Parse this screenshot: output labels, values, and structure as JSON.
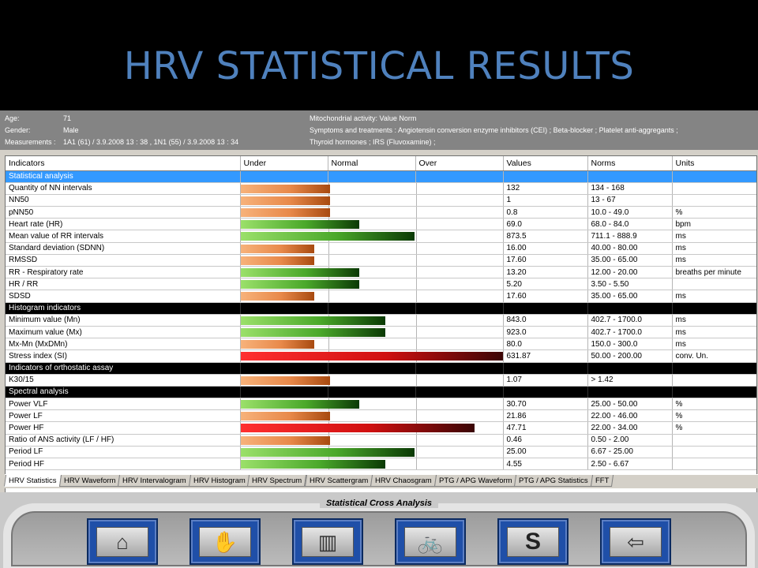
{
  "slide_title": "HRV STATISTICAL RESULTS",
  "patient": {
    "age_label": "Age:",
    "age": "71",
    "gender_label": "Gender:",
    "gender": "Male",
    "measurements_label": "Measurements :",
    "measurements": "1A1  (61)  / 3.9.2008  13 : 38 , 1N1  (55)  / 3.9.2008  13 : 34",
    "mito": "Mitochondrial activity: Value Norm",
    "symptoms": "Symptoms and treatments : Angiotensin conversion enzyme inhibitors (CEI) ; Beta-blocker ; Platelet anti-aggregants ;",
    "symptoms2": "Thyroid hormones ; IRS (Fluvoxamine) ;"
  },
  "columns": [
    "Indicators",
    "Under",
    "Normal",
    "Over",
    "Values",
    "Norms",
    "Units"
  ],
  "rows": [
    {
      "type": "section",
      "style": "blue",
      "label": "Statistical analysis"
    },
    {
      "label": "Quantity of NN intervals",
      "value": "132",
      "norm": "134 - 168",
      "unit": "",
      "bar": 0.34,
      "color": "orange"
    },
    {
      "label": "NN50",
      "value": "1",
      "norm": "13 - 67",
      "unit": "",
      "bar": 0.34,
      "color": "orange"
    },
    {
      "label": "pNN50",
      "value": "0.8",
      "norm": "10.0 - 49.0",
      "unit": "%",
      "bar": 0.34,
      "color": "orange"
    },
    {
      "label": "Heart rate (HR)",
      "value": "69.0",
      "norm": "68.0 - 84.0",
      "unit": "bpm",
      "bar": 0.45,
      "color": "green"
    },
    {
      "label": "Mean value of RR intervals",
      "value": "873.5",
      "norm": "711.1 - 888.9",
      "unit": "ms",
      "bar": 0.66,
      "color": "green"
    },
    {
      "label": "Standard deviation (SDNN)",
      "value": "16.00",
      "norm": "40.00 - 80.00",
      "unit": "ms",
      "bar": 0.28,
      "color": "orange"
    },
    {
      "label": "RMSSD",
      "value": "17.60",
      "norm": "35.00 - 65.00",
      "unit": "ms",
      "bar": 0.28,
      "color": "orange"
    },
    {
      "label": "RR - Respiratory rate",
      "value": "13.20",
      "norm": "12.00 - 20.00",
      "unit": "breaths per minute",
      "bar": 0.45,
      "color": "green"
    },
    {
      "label": "HR / RR",
      "value": "5.20",
      "norm": "3.50 - 5.50",
      "unit": "",
      "bar": 0.45,
      "color": "green"
    },
    {
      "label": "SDSD",
      "value": "17.60",
      "norm": "35.00 - 65.00",
      "unit": "ms",
      "bar": 0.28,
      "color": "orange"
    },
    {
      "type": "section",
      "style": "black",
      "label": "Histogram indicators"
    },
    {
      "label": "Minimum value (Mn)",
      "value": "843.0",
      "norm": "402.7 - 1700.0",
      "unit": "ms",
      "bar": 0.55,
      "color": "green"
    },
    {
      "label": "Maximum value (Mx)",
      "value": "923.0",
      "norm": "402.7 - 1700.0",
      "unit": "ms",
      "bar": 0.55,
      "color": "green"
    },
    {
      "label": "Mx-Mn (MxDMn)",
      "value": "80.0",
      "norm": "150.0 - 300.0",
      "unit": "ms",
      "bar": 0.28,
      "color": "orange"
    },
    {
      "label": "Stress index (SI)",
      "value": "631.87",
      "norm": "50.00 - 200.00",
      "unit": "conv. Un.",
      "bar": 1.0,
      "color": "red"
    },
    {
      "type": "section",
      "style": "black",
      "label": "Indicators of orthostatic assay"
    },
    {
      "label": "K30/15",
      "value": "1.07",
      "norm": "> 1.42",
      "unit": "",
      "bar": 0.34,
      "color": "orange"
    },
    {
      "type": "section",
      "style": "black",
      "label": "Spectral analysis"
    },
    {
      "label": "Power VLF",
      "value": "30.70",
      "norm": "25.00 - 50.00",
      "unit": "%",
      "bar": 0.45,
      "color": "green"
    },
    {
      "label": "Power LF",
      "value": "21.86",
      "norm": "22.00 - 46.00",
      "unit": "%",
      "bar": 0.34,
      "color": "orange"
    },
    {
      "label": "Power HF",
      "value": "47.71",
      "norm": "22.00 - 34.00",
      "unit": "%",
      "bar": 0.89,
      "color": "red"
    },
    {
      "label": "Ratio of ANS activity (LF / HF)",
      "value": "0.46",
      "norm": "0.50 - 2.00",
      "unit": "",
      "bar": 0.34,
      "color": "orange"
    },
    {
      "label": "Period LF",
      "value": "25.00",
      "norm": "6.67 - 25.00",
      "unit": "",
      "bar": 0.66,
      "color": "green"
    },
    {
      "label": "Period HF",
      "value": "4.55",
      "norm": "2.50 - 6.67",
      "unit": "",
      "bar": 0.55,
      "color": "green"
    }
  ],
  "tabs": [
    {
      "label": "HRV Statistics",
      "active": true
    },
    {
      "label": "HRV Waveform"
    },
    {
      "label": "HRV Intervalogram"
    },
    {
      "label": "HRV Histogram"
    },
    {
      "label": "HRV Spectrum"
    },
    {
      "label": "HRV Scattergram"
    },
    {
      "label": "HRV Chaosgram"
    },
    {
      "label": "PTG / APG Waveform"
    },
    {
      "label": "PTG / APG Statistics"
    },
    {
      "label": "FFT"
    }
  ],
  "panel_title": "Statistical Cross Analysis",
  "buttons": [
    {
      "name": "home-button",
      "icon": "home-icon",
      "glyph": "⌂"
    },
    {
      "name": "hand-button",
      "icon": "hand-icon",
      "glyph": "✋"
    },
    {
      "name": "waveform-button",
      "icon": "waveform-icon",
      "glyph": "▥"
    },
    {
      "name": "bicycle-button",
      "icon": "bicycle-icon",
      "glyph": "🚲"
    },
    {
      "name": "s-button",
      "icon": "s-icon",
      "glyph": "S"
    },
    {
      "name": "back-button",
      "icon": "back-arrow-icon",
      "glyph": "⇦"
    }
  ],
  "colors": {
    "title": "#4f81bd",
    "orange_bar": "#f0a060",
    "green_bar": "#7fd23c",
    "red_bar": "#ff2020",
    "section_blue": "#3399ff"
  }
}
